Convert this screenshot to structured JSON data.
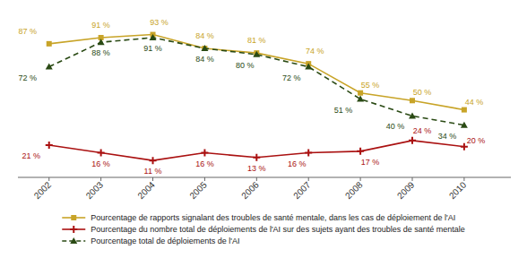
{
  "chart_data": {
    "type": "line",
    "x": [
      2002,
      2003,
      2004,
      2005,
      2006,
      2007,
      2008,
      2009,
      2010
    ],
    "xlim": [
      2001.4,
      2010.9
    ],
    "xticks": [
      2002,
      2003,
      2004,
      2005,
      2006,
      2007,
      2008,
      2009,
      2010
    ],
    "ylim": [
      0,
      105
    ],
    "tick_labels": "x",
    "grid": false,
    "legend": "bottom",
    "data_labels": true,
    "series": [
      {
        "name": "Pourcentage de rapports signalant des troubles de santé mentale, dans les cas de déploiement de l'AI",
        "color": "#c8a428",
        "marker": "square",
        "line_style": "solid",
        "values": [
          87,
          91,
          93,
          84,
          81,
          74,
          55,
          50,
          44
        ],
        "value_labels": [
          "87 %",
          "91 %",
          "93 %",
          "84 %",
          "81 %",
          "74 %",
          "55 %",
          "50 %",
          "44 %"
        ]
      },
      {
        "name": "Pourcentage du nombre total de déploiements de l'AI sur des sujets ayant des troubles de santé mentale",
        "color": "#aa1111",
        "marker": "plus",
        "line_style": "solid",
        "values": [
          21,
          16,
          11,
          16,
          13,
          16,
          17,
          24,
          20
        ],
        "value_labels": [
          "21 %",
          "16 %",
          "11 %",
          "16 %",
          "13 %",
          "16 %",
          "17 %",
          "24 %",
          "20 %"
        ]
      },
      {
        "name": "Pourcentage total de déploiements de l'AI",
        "color": "#2a4a14",
        "marker": "triangle",
        "line_style": "dashed",
        "values": [
          72,
          88,
          91,
          84,
          80,
          72,
          51,
          40,
          34
        ],
        "value_labels": [
          "72 %",
          "88 %",
          "91 %",
          "84 %",
          "80 %",
          "72 %",
          "51 %",
          "40 %",
          "34 %"
        ]
      }
    ]
  }
}
